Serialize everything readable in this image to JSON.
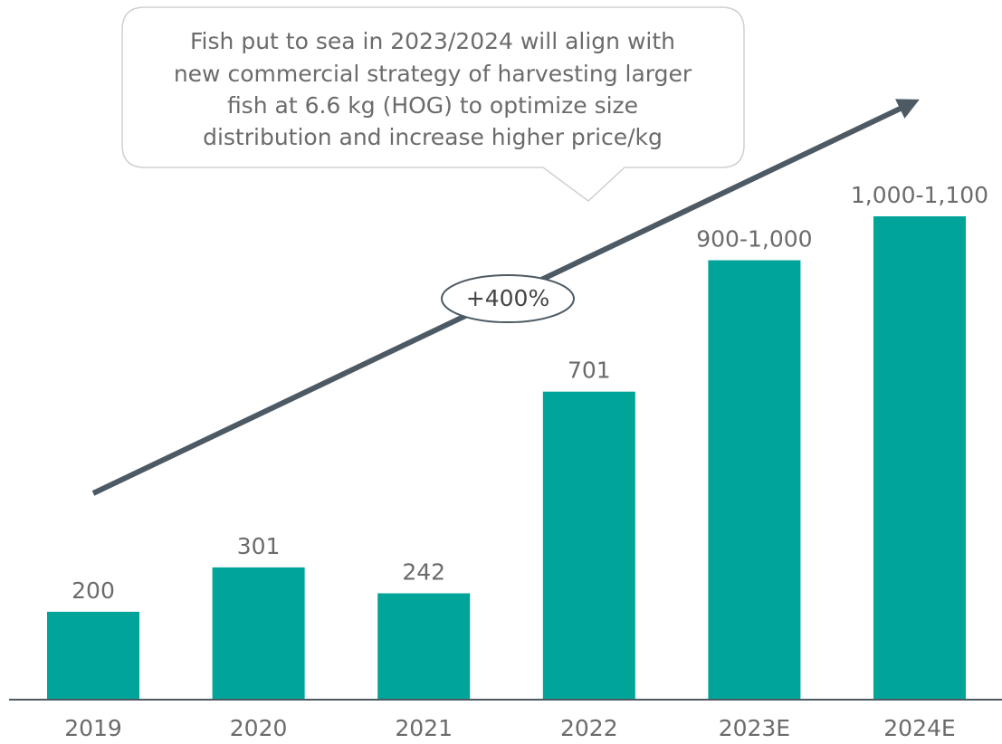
{
  "chart_data": {
    "type": "bar",
    "categories": [
      "2019",
      "2020",
      "2021",
      "2022",
      "2023E",
      "2024E"
    ],
    "values": [
      200,
      301,
      242,
      701,
      1000,
      1100
    ],
    "value_labels": [
      "200",
      "301",
      "242",
      "701",
      "900-1,000",
      "1,000-1,100"
    ],
    "color": "#00a499",
    "callout": [
      "Fish put to sea in 2023/2024 will align with",
      "new commercial strategy of harvesting larger",
      "fish at 6.6 kg (HOG) to optimize size",
      "distribution and increase higher price/kg"
    ],
    "growth_label": "+400%"
  }
}
